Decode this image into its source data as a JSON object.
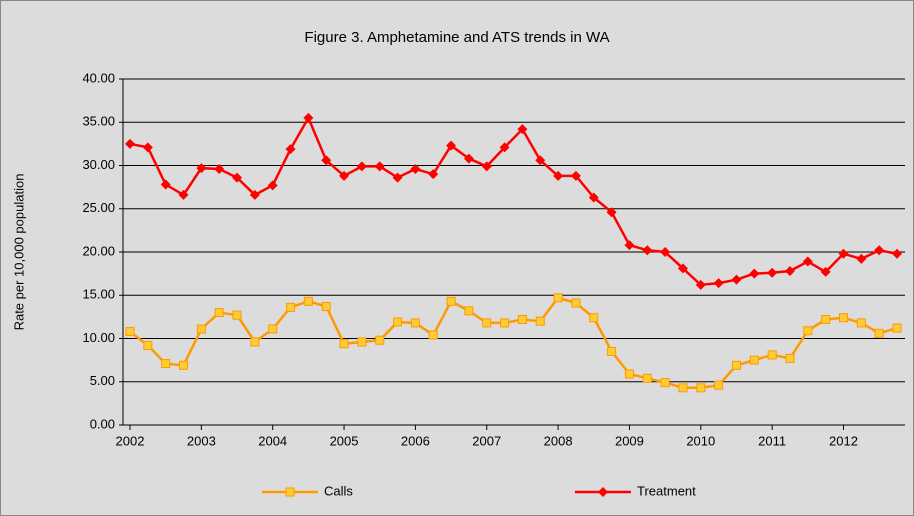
{
  "chart_data": {
    "type": "line",
    "title": "Figure 3. Amphetamine and ATS trends in WA",
    "y_label": "Rate per 10,000 population",
    "categories": [
      "2002",
      null,
      null,
      null,
      "2003",
      null,
      null,
      null,
      "2004",
      null,
      null,
      null,
      "2005",
      null,
      null,
      null,
      "2006",
      null,
      null,
      null,
      "2007",
      null,
      null,
      null,
      "2008",
      null,
      null,
      null,
      "2009",
      null,
      null,
      null,
      "2010",
      null,
      null,
      null,
      "2011",
      null,
      null,
      null,
      "2012",
      null,
      null,
      null
    ],
    "series": [
      {
        "name": "Calls",
        "color": "#ff9900",
        "marker": "square",
        "values": [
          10.8,
          9.2,
          7.1,
          6.9,
          11.1,
          13.0,
          12.7,
          9.6,
          11.1,
          13.6,
          14.3,
          13.7,
          9.4,
          9.6,
          9.8,
          11.9,
          11.8,
          10.4,
          14.3,
          13.2,
          11.8,
          11.8,
          12.2,
          12.0,
          14.7,
          14.1,
          12.4,
          8.5,
          5.9,
          5.4,
          4.9,
          4.3,
          4.3,
          4.6,
          6.9,
          7.5,
          8.1,
          7.7,
          10.9,
          12.2,
          12.4,
          11.8,
          10.6,
          11.2
        ]
      },
      {
        "name": "Treatment",
        "color": "#ff0000",
        "marker": "diamond",
        "values": [
          32.5,
          32.1,
          27.8,
          26.6,
          29.7,
          29.6,
          28.6,
          26.6,
          27.7,
          31.9,
          35.5,
          30.6,
          28.8,
          29.9,
          29.9,
          28.6,
          29.6,
          29.0,
          32.3,
          30.8,
          29.9,
          32.1,
          34.2,
          30.6,
          28.8,
          28.8,
          26.3,
          24.6,
          20.8,
          20.2,
          20.0,
          18.1,
          16.2,
          16.4,
          16.8,
          17.5,
          17.6,
          17.8,
          18.9,
          17.7,
          19.8,
          19.2,
          20.2,
          19.8
        ]
      }
    ],
    "ylim": [
      0,
      40
    ],
    "yticks": [
      {
        "value": 0,
        "label": "0.00"
      },
      {
        "value": 5,
        "label": "5.00"
      },
      {
        "value": 10,
        "label": "10.00"
      },
      {
        "value": 15,
        "label": "15.00"
      },
      {
        "value": 20,
        "label": "20.00"
      },
      {
        "value": 25,
        "label": "25.00"
      },
      {
        "value": 30,
        "label": "30.00"
      },
      {
        "value": 35,
        "label": "35.00"
      },
      {
        "value": 40,
        "label": "40.00"
      }
    ],
    "grid": true,
    "legend": "bottom"
  }
}
